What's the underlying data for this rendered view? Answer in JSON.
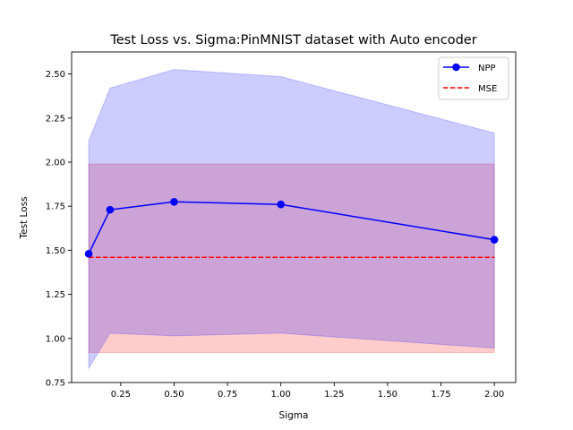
{
  "chart_data": {
    "type": "line",
    "title": "Test Loss vs. Sigma:PinMNIST dataset with Auto encoder",
    "xlabel": "Sigma",
    "ylabel": "Test Loss",
    "xlim": [
      0.02,
      2.1
    ],
    "ylim": [
      0.75,
      2.625
    ],
    "xticks": [
      0.25,
      0.5,
      0.75,
      1.0,
      1.25,
      1.5,
      1.75,
      2.0
    ],
    "xtick_labels": [
      "0.25",
      "0.50",
      "0.75",
      "1.00",
      "1.25",
      "1.50",
      "1.75",
      "2.00"
    ],
    "yticks": [
      0.75,
      1.0,
      1.25,
      1.5,
      1.75,
      2.0,
      2.25,
      2.5
    ],
    "ytick_labels": [
      "0.75",
      "1.00",
      "1.25",
      "1.50",
      "1.75",
      "2.00",
      "2.25",
      "2.50"
    ],
    "grid": false,
    "legend_position": "top-right",
    "series": [
      {
        "name": "NPP",
        "style": "solid line with circle markers",
        "color": "#0000ff",
        "x": [
          0.1,
          0.2,
          0.5,
          1.0,
          2.0
        ],
        "values": [
          1.48,
          1.73,
          1.775,
          1.76,
          1.56
        ],
        "band_lower": [
          0.83,
          1.03,
          1.015,
          1.03,
          0.945
        ],
        "band_upper": [
          2.12,
          2.42,
          2.525,
          2.485,
          2.165
        ],
        "band_color": "#0000ff",
        "band_opacity": 0.2
      },
      {
        "name": "MSE",
        "style": "dashed line",
        "color": "#ff0000",
        "x": [
          0.1,
          2.0
        ],
        "values": [
          1.46,
          1.46
        ],
        "band_lower": [
          0.92,
          0.92
        ],
        "band_upper": [
          1.99,
          1.99
        ],
        "band_color": "#ff0000",
        "band_opacity": 0.2
      }
    ]
  }
}
